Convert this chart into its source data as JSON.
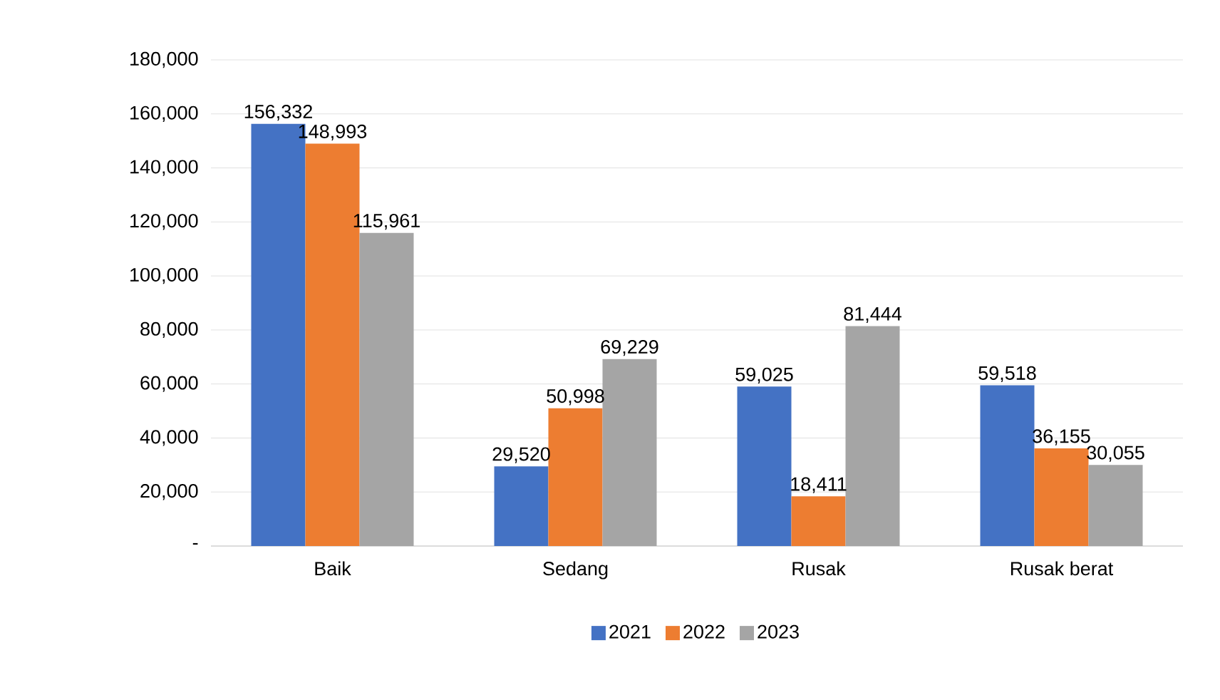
{
  "chart_data": {
    "type": "bar",
    "categories": [
      "Baik",
      "Sedang",
      "Rusak",
      "Rusak berat"
    ],
    "series": [
      {
        "name": "2021",
        "color": "#4472c4",
        "values": [
          156332,
          29520,
          59025,
          59518
        ],
        "value_labels": [
          "156,332",
          "29,520",
          "59,025",
          "59,518"
        ]
      },
      {
        "name": "2022",
        "color": "#ed7d31",
        "values": [
          148993,
          50998,
          18411,
          36155
        ],
        "value_labels": [
          "148,993",
          "50,998",
          "18,411",
          "36,155"
        ]
      },
      {
        "name": "2023",
        "color": "#a5a5a5",
        "values": [
          115961,
          69229,
          81444,
          30055
        ],
        "value_labels": [
          "115,961",
          "69,229",
          "81,444",
          "30,055"
        ]
      }
    ],
    "ylim": [
      0,
      180000
    ],
    "yticks": [
      {
        "value": 0,
        "label": "-"
      },
      {
        "value": 20000,
        "label": "20,000"
      },
      {
        "value": 40000,
        "label": "40,000"
      },
      {
        "value": 60000,
        "label": "60,000"
      },
      {
        "value": 80000,
        "label": "80,000"
      },
      {
        "value": 100000,
        "label": "100,000"
      },
      {
        "value": 120000,
        "label": "120,000"
      },
      {
        "value": 140000,
        "label": "140,000"
      },
      {
        "value": 160000,
        "label": "160,000"
      },
      {
        "value": 180000,
        "label": "180,000"
      }
    ],
    "grid": "y",
    "legend": "bottom"
  }
}
